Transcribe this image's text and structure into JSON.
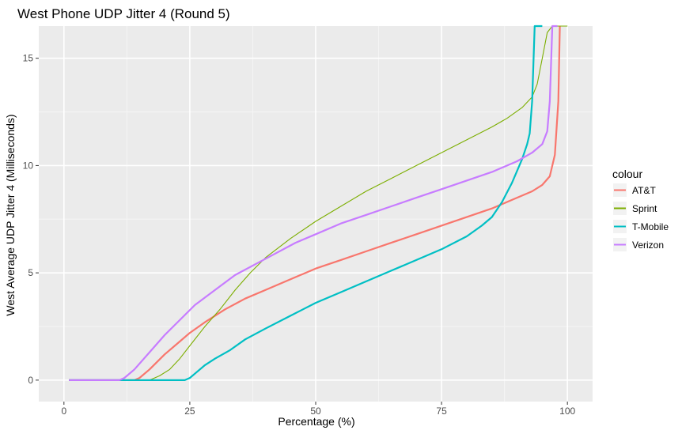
{
  "chart_data": {
    "type": "line",
    "title": "West Phone UDP Jitter 4 (Round 5)",
    "xlabel": "Percentage (%)",
    "ylabel": "West Average UDP Jitter 4 (Milliseconds)",
    "xlim": [
      -5,
      105
    ],
    "ylim": [
      -1,
      16.5
    ],
    "x_ticks": [
      0,
      25,
      50,
      75,
      100
    ],
    "y_ticks": [
      0,
      5,
      10,
      15
    ],
    "grid": true,
    "legend_title": "colour",
    "legend_position": "right",
    "series": [
      {
        "name": "AT&T",
        "color": "#F8766D",
        "points": [
          [
            1,
            0
          ],
          [
            14,
            0
          ],
          [
            15,
            0.1
          ],
          [
            17,
            0.5
          ],
          [
            20,
            1.2
          ],
          [
            23,
            1.8
          ],
          [
            25,
            2.2
          ],
          [
            28,
            2.7
          ],
          [
            32,
            3.3
          ],
          [
            36,
            3.8
          ],
          [
            40,
            4.2
          ],
          [
            45,
            4.7
          ],
          [
            50,
            5.2
          ],
          [
            55,
            5.6
          ],
          [
            60,
            6.0
          ],
          [
            65,
            6.4
          ],
          [
            70,
            6.8
          ],
          [
            75,
            7.2
          ],
          [
            80,
            7.6
          ],
          [
            85,
            8.0
          ],
          [
            90,
            8.5
          ],
          [
            93,
            8.8
          ],
          [
            95,
            9.1
          ],
          [
            96.5,
            9.5
          ],
          [
            97.5,
            10.5
          ],
          [
            98.2,
            13.0
          ],
          [
            98.5,
            16.5
          ]
        ]
      },
      {
        "name": "Sprint",
        "color": "#7CAE00",
        "points": [
          [
            1,
            0
          ],
          [
            17,
            0
          ],
          [
            19,
            0.2
          ],
          [
            21,
            0.5
          ],
          [
            23,
            1.0
          ],
          [
            25,
            1.6
          ],
          [
            28,
            2.5
          ],
          [
            31,
            3.3
          ],
          [
            34,
            4.2
          ],
          [
            37,
            5.0
          ],
          [
            40,
            5.7
          ],
          [
            45,
            6.6
          ],
          [
            50,
            7.4
          ],
          [
            55,
            8.1
          ],
          [
            60,
            8.8
          ],
          [
            65,
            9.4
          ],
          [
            70,
            10.0
          ],
          [
            75,
            10.6
          ],
          [
            80,
            11.2
          ],
          [
            85,
            11.8
          ],
          [
            88,
            12.2
          ],
          [
            91,
            12.7
          ],
          [
            93,
            13.2
          ],
          [
            94,
            13.8
          ],
          [
            95,
            15.0
          ],
          [
            96,
            16.2
          ],
          [
            97,
            16.5
          ],
          [
            100,
            16.5
          ]
        ]
      },
      {
        "name": "T-Mobile",
        "color": "#00BFC4",
        "points": [
          [
            1,
            0
          ],
          [
            24,
            0
          ],
          [
            25,
            0.1
          ],
          [
            26,
            0.3
          ],
          [
            28,
            0.7
          ],
          [
            30,
            1.0
          ],
          [
            33,
            1.4
          ],
          [
            36,
            1.9
          ],
          [
            40,
            2.4
          ],
          [
            45,
            3.0
          ],
          [
            50,
            3.6
          ],
          [
            55,
            4.1
          ],
          [
            60,
            4.6
          ],
          [
            65,
            5.1
          ],
          [
            70,
            5.6
          ],
          [
            75,
            6.1
          ],
          [
            80,
            6.7
          ],
          [
            83,
            7.2
          ],
          [
            85,
            7.6
          ],
          [
            87,
            8.3
          ],
          [
            89,
            9.2
          ],
          [
            91,
            10.3
          ],
          [
            92,
            11.0
          ],
          [
            92.5,
            11.5
          ],
          [
            93,
            13.0
          ],
          [
            93.5,
            16.5
          ],
          [
            95,
            16.5
          ]
        ]
      },
      {
        "name": "Verizon",
        "color": "#C77CFF",
        "points": [
          [
            1,
            0
          ],
          [
            11,
            0
          ],
          [
            12,
            0.1
          ],
          [
            14,
            0.5
          ],
          [
            17,
            1.3
          ],
          [
            20,
            2.1
          ],
          [
            23,
            2.8
          ],
          [
            26,
            3.5
          ],
          [
            30,
            4.2
          ],
          [
            34,
            4.9
          ],
          [
            38,
            5.4
          ],
          [
            42,
            5.9
          ],
          [
            46,
            6.4
          ],
          [
            50,
            6.8
          ],
          [
            55,
            7.3
          ],
          [
            60,
            7.7
          ],
          [
            65,
            8.1
          ],
          [
            70,
            8.5
          ],
          [
            75,
            8.9
          ],
          [
            80,
            9.3
          ],
          [
            85,
            9.7
          ],
          [
            90,
            10.2
          ],
          [
            93,
            10.6
          ],
          [
            95,
            11.0
          ],
          [
            96,
            11.6
          ],
          [
            96.5,
            13.0
          ],
          [
            97,
            16.5
          ],
          [
            98,
            16.5
          ]
        ]
      }
    ]
  }
}
